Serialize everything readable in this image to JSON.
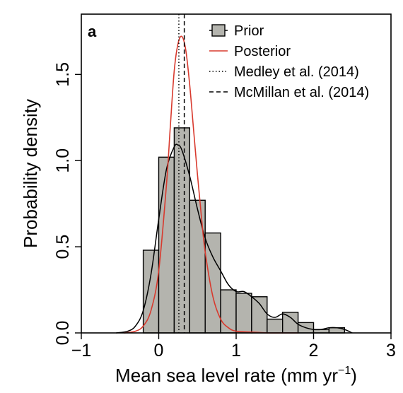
{
  "chart_data": {
    "type": "bar",
    "panel_label": "a",
    "xlabel": "Mean sea level rate (mm yr",
    "xlabel_sup": "−1",
    "xlabel_close": ")",
    "ylabel": "Probability density",
    "xlim": [
      -1,
      3
    ],
    "ylim": [
      0,
      1.85
    ],
    "xticks": [
      -1,
      0,
      1,
      2,
      3
    ],
    "xtick_labels": [
      "−1",
      "0",
      "1",
      "2",
      "3"
    ],
    "yticks": [
      0.0,
      0.5,
      1.0,
      1.5
    ],
    "ytick_labels": [
      "0.0",
      "0.5",
      "1.0",
      "1.5"
    ],
    "grid": false,
    "legend_position": "top-right",
    "colors": {
      "bars": "#b4b4ae",
      "bar_edge": "#000000",
      "posterior": "#d83a2e",
      "prior_density": "#000000",
      "reference": "#000000"
    },
    "histogram": {
      "name": "Prior",
      "bin_edges": [
        -0.2,
        0.0,
        0.2,
        0.4,
        0.6,
        0.8,
        1.0,
        1.2,
        1.4,
        1.6,
        1.8,
        2.0,
        2.2,
        2.4
      ],
      "values": [
        0.48,
        1.02,
        1.19,
        0.77,
        0.58,
        0.25,
        0.23,
        0.21,
        0.08,
        0.12,
        0.06,
        0.02,
        0.03
      ]
    },
    "prior_density": {
      "x": [
        -0.55,
        -0.4,
        -0.3,
        -0.2,
        -0.1,
        0.0,
        0.1,
        0.2,
        0.25,
        0.3,
        0.4,
        0.5,
        0.6,
        0.7,
        0.8,
        0.9,
        1.0,
        1.1,
        1.2,
        1.3,
        1.4,
        1.5,
        1.6,
        1.7,
        1.8,
        1.9,
        2.0,
        2.1,
        2.2,
        2.3,
        2.4,
        2.5
      ],
      "y": [
        0.0,
        0.01,
        0.04,
        0.13,
        0.34,
        0.66,
        0.95,
        1.08,
        1.09,
        1.06,
        0.91,
        0.72,
        0.55,
        0.44,
        0.36,
        0.28,
        0.24,
        0.24,
        0.21,
        0.17,
        0.11,
        0.09,
        0.11,
        0.09,
        0.05,
        0.03,
        0.02,
        0.02,
        0.03,
        0.03,
        0.02,
        0.0
      ]
    },
    "series": [
      {
        "name": "Posterior",
        "x": [
          -0.45,
          -0.3,
          -0.2,
          -0.1,
          0.0,
          0.1,
          0.15,
          0.2,
          0.25,
          0.3,
          0.35,
          0.4,
          0.45,
          0.5,
          0.55,
          0.6,
          0.7,
          0.8,
          0.9,
          1.0,
          1.2,
          1.4,
          1.6,
          1.8
        ],
        "y": [
          0.0,
          0.01,
          0.04,
          0.13,
          0.36,
          0.86,
          1.2,
          1.52,
          1.68,
          1.72,
          1.64,
          1.44,
          1.18,
          0.92,
          0.68,
          0.47,
          0.21,
          0.08,
          0.03,
          0.01,
          0.005,
          0.0,
          0.0,
          0.0
        ]
      }
    ],
    "reference_lines": [
      {
        "name": "Medley et al. (2014)",
        "x": 0.26,
        "style": "dotted"
      },
      {
        "name": "McMillan et al. (2014)",
        "x": 0.33,
        "style": "dashed"
      }
    ],
    "legend": [
      {
        "label": "Prior",
        "symbol": "box"
      },
      {
        "label": "Posterior",
        "symbol": "line"
      },
      {
        "label": "Medley et al. (2014)",
        "symbol": "dotted"
      },
      {
        "label": "McMillan et al. (2014)",
        "symbol": "dashed"
      }
    ]
  }
}
